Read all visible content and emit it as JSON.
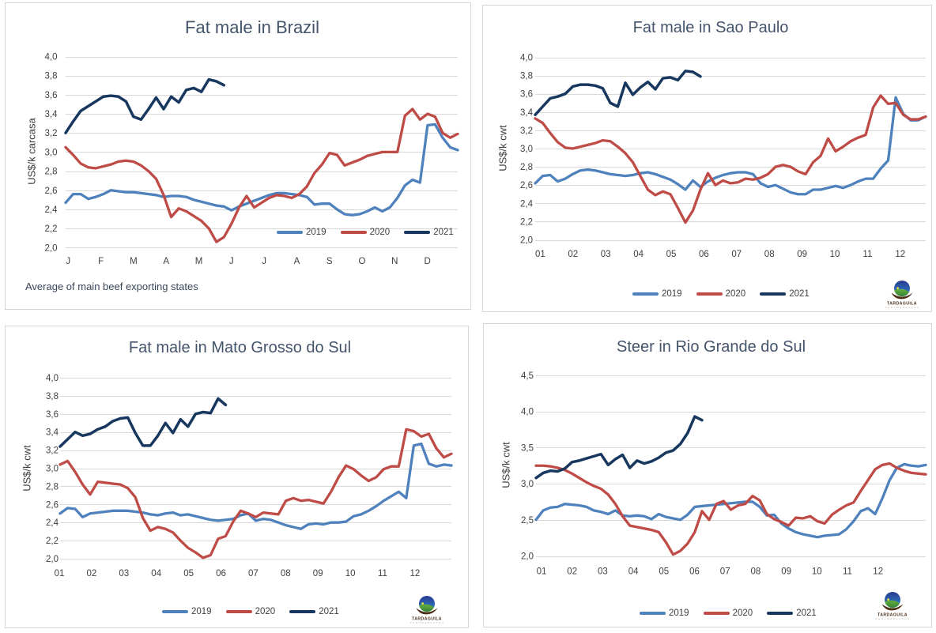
{
  "page": {
    "background": "#ffffff"
  },
  "colors": {
    "series_2019": "#4F81BD",
    "series_2020": "#BF4B47",
    "series_2021": "#17375E",
    "gridline": "#D9D9D9",
    "panel_border": "#D6D6D6",
    "chart_title_text": "#44546A",
    "tick_text": "#404040",
    "legend_text": "#404040",
    "footnote_text": "#39465A",
    "logo_name_text": "#4A2F1B",
    "logo_subtext": "#B3A89C"
  },
  "logo": {
    "name": "TARDAGUILA",
    "subtext": "A G R O M E R C A D O S"
  },
  "chart_data": [
    {
      "type": "line",
      "title": "Fat male in Brazil",
      "ylabel": "US$/k carcasa",
      "xlabel": "",
      "footnote": "Average of main beef exporting states",
      "ylim": [
        2.0,
        4.0
      ],
      "grid": true,
      "legend_position": "inside-bottom-right",
      "y_tick_labels": [
        "2,0",
        "2,2",
        "2,4",
        "2,6",
        "2,8",
        "3,0",
        "3,2",
        "3,4",
        "3,6",
        "3,8",
        "4,0"
      ],
      "y_tick_values": [
        2.0,
        2.2,
        2.4,
        2.6,
        2.8,
        3.0,
        3.2,
        3.4,
        3.6,
        3.8,
        4.0
      ],
      "x_tick_labels": [
        "J",
        "F",
        "M",
        "A",
        "M",
        "J",
        "J",
        "A",
        "S",
        "O",
        "N",
        "D"
      ],
      "series": [
        {
          "name": "2019",
          "color_key": "series_2019",
          "values": [
            2.47,
            2.56,
            2.56,
            2.51,
            2.53,
            2.56,
            2.6,
            2.59,
            2.58,
            2.58,
            2.57,
            2.56,
            2.55,
            2.53,
            2.54,
            2.54,
            2.53,
            2.5,
            2.48,
            2.46,
            2.44,
            2.43,
            2.39,
            2.43,
            2.46,
            2.49,
            2.52,
            2.55,
            2.57,
            2.57,
            2.56,
            2.55,
            2.53,
            2.45,
            2.46,
            2.46,
            2.4,
            2.35,
            2.34,
            2.35,
            2.38,
            2.42,
            2.38,
            2.42,
            2.52,
            2.65,
            2.71,
            2.68,
            3.28,
            3.29,
            3.15,
            3.05,
            3.02
          ]
        },
        {
          "name": "2020",
          "color_key": "series_2020",
          "values": [
            3.05,
            2.97,
            2.88,
            2.84,
            2.83,
            2.85,
            2.87,
            2.9,
            2.91,
            2.9,
            2.86,
            2.8,
            2.72,
            2.55,
            2.32,
            2.41,
            2.38,
            2.33,
            2.28,
            2.2,
            2.06,
            2.11,
            2.25,
            2.42,
            2.54,
            2.42,
            2.47,
            2.52,
            2.55,
            2.54,
            2.52,
            2.56,
            2.64,
            2.78,
            2.87,
            2.99,
            2.97,
            2.86,
            2.89,
            2.92,
            2.96,
            2.98,
            3.0,
            3.0,
            3.0,
            3.38,
            3.45,
            3.34,
            3.4,
            3.37,
            3.2,
            3.15,
            3.19
          ]
        },
        {
          "name": "2021",
          "color_key": "series_2021",
          "values": [
            3.2,
            3.32,
            3.43,
            3.48,
            3.53,
            3.58,
            3.59,
            3.58,
            3.53,
            3.37,
            3.34,
            3.45,
            3.57,
            3.45,
            3.58,
            3.52,
            3.65,
            3.67,
            3.63,
            3.76,
            3.74,
            3.7
          ]
        }
      ]
    },
    {
      "type": "line",
      "title": "Fat male in Sao Paulo",
      "ylabel": "US$/k cwt",
      "xlabel": "",
      "footnote": "",
      "ylim": [
        2.0,
        4.0
      ],
      "grid": true,
      "legend_position": "below-center",
      "y_tick_labels": [
        "2,0",
        "2,2",
        "2,4",
        "2,6",
        "2,8",
        "3,0",
        "3,2",
        "3,4",
        "3,6",
        "3,8",
        "4,0"
      ],
      "y_tick_values": [
        2.0,
        2.2,
        2.4,
        2.6,
        2.8,
        3.0,
        3.2,
        3.4,
        3.6,
        3.8,
        4.0
      ],
      "x_tick_labels": [
        "01",
        "02",
        "03",
        "04",
        "05",
        "06",
        "07",
        "08",
        "09",
        "10",
        "11",
        "12"
      ],
      "series": [
        {
          "name": "2019",
          "color_key": "series_2019",
          "values": [
            2.62,
            2.7,
            2.71,
            2.64,
            2.67,
            2.72,
            2.76,
            2.77,
            2.76,
            2.74,
            2.72,
            2.71,
            2.7,
            2.71,
            2.73,
            2.74,
            2.72,
            2.69,
            2.66,
            2.61,
            2.55,
            2.65,
            2.58,
            2.64,
            2.68,
            2.71,
            2.73,
            2.74,
            2.74,
            2.72,
            2.62,
            2.58,
            2.6,
            2.56,
            2.52,
            2.5,
            2.5,
            2.55,
            2.55,
            2.57,
            2.59,
            2.57,
            2.6,
            2.64,
            2.67,
            2.67,
            2.78,
            2.87,
            3.56,
            3.38,
            3.31,
            3.31,
            3.35
          ]
        },
        {
          "name": "2020",
          "color_key": "series_2020",
          "values": [
            3.33,
            3.28,
            3.17,
            3.07,
            3.01,
            3.0,
            3.02,
            3.04,
            3.06,
            3.09,
            3.08,
            3.02,
            2.95,
            2.85,
            2.7,
            2.55,
            2.49,
            2.53,
            2.5,
            2.35,
            2.19,
            2.32,
            2.55,
            2.73,
            2.6,
            2.65,
            2.62,
            2.63,
            2.67,
            2.66,
            2.68,
            2.72,
            2.8,
            2.82,
            2.8,
            2.75,
            2.72,
            2.85,
            2.92,
            3.11,
            2.97,
            3.02,
            3.08,
            3.12,
            3.15,
            3.45,
            3.58,
            3.49,
            3.5,
            3.37,
            3.32,
            3.32,
            3.35
          ]
        },
        {
          "name": "2021",
          "color_key": "series_2021",
          "values": [
            3.37,
            3.46,
            3.55,
            3.57,
            3.6,
            3.68,
            3.7,
            3.7,
            3.69,
            3.66,
            3.5,
            3.46,
            3.72,
            3.59,
            3.67,
            3.73,
            3.65,
            3.77,
            3.78,
            3.75,
            3.85,
            3.84,
            3.79
          ]
        }
      ]
    },
    {
      "type": "line",
      "title": "Fat male in Mato Grosso do Sul",
      "ylabel": "US$/k cwt",
      "xlabel": "",
      "footnote": "",
      "ylim": [
        2.0,
        4.0
      ],
      "grid": true,
      "legend_position": "below-center",
      "y_tick_labels": [
        "2,0",
        "2,2",
        "2,4",
        "2,6",
        "2,8",
        "3,0",
        "3,2",
        "3,4",
        "3,6",
        "3,8",
        "4,0"
      ],
      "y_tick_values": [
        2.0,
        2.2,
        2.4,
        2.6,
        2.8,
        3.0,
        3.2,
        3.4,
        3.6,
        3.8,
        4.0
      ],
      "x_tick_labels": [
        "01",
        "02",
        "03",
        "04",
        "05",
        "06",
        "07",
        "08",
        "09",
        "10",
        "11",
        "12"
      ],
      "series": [
        {
          "name": "2019",
          "color_key": "series_2019",
          "values": [
            2.5,
            2.56,
            2.55,
            2.46,
            2.5,
            2.51,
            2.52,
            2.53,
            2.53,
            2.53,
            2.52,
            2.51,
            2.49,
            2.48,
            2.5,
            2.51,
            2.48,
            2.49,
            2.47,
            2.45,
            2.43,
            2.42,
            2.43,
            2.44,
            2.48,
            2.5,
            2.42,
            2.44,
            2.43,
            2.4,
            2.37,
            2.35,
            2.33,
            2.38,
            2.39,
            2.38,
            2.4,
            2.4,
            2.41,
            2.47,
            2.49,
            2.53,
            2.58,
            2.64,
            2.69,
            2.74,
            2.67,
            3.25,
            3.27,
            3.05,
            3.02,
            3.04,
            3.03
          ]
        },
        {
          "name": "2020",
          "color_key": "series_2020",
          "values": [
            3.04,
            3.08,
            2.96,
            2.82,
            2.71,
            2.85,
            2.84,
            2.83,
            2.82,
            2.78,
            2.68,
            2.45,
            2.31,
            2.35,
            2.33,
            2.29,
            2.2,
            2.12,
            2.07,
            2.01,
            2.04,
            2.22,
            2.25,
            2.41,
            2.53,
            2.5,
            2.46,
            2.51,
            2.5,
            2.49,
            2.64,
            2.67,
            2.64,
            2.65,
            2.63,
            2.61,
            2.74,
            2.9,
            3.03,
            2.99,
            2.92,
            2.86,
            2.9,
            2.99,
            3.02,
            3.02,
            3.43,
            3.41,
            3.35,
            3.38,
            3.22,
            3.12,
            3.16
          ]
        },
        {
          "name": "2021",
          "color_key": "series_2021",
          "values": [
            3.24,
            3.32,
            3.4,
            3.36,
            3.38,
            3.43,
            3.46,
            3.52,
            3.55,
            3.56,
            3.39,
            3.25,
            3.25,
            3.36,
            3.5,
            3.39,
            3.54,
            3.46,
            3.6,
            3.62,
            3.61,
            3.77,
            3.7
          ]
        }
      ]
    },
    {
      "type": "line",
      "title": "Steer in Rio Grande do Sul",
      "ylabel": "US$/k cwt",
      "xlabel": "",
      "footnote": "",
      "ylim": [
        2.0,
        4.5
      ],
      "grid": true,
      "legend_position": "below-center",
      "y_tick_labels": [
        "2,0",
        "2,5",
        "3,0",
        "3,5",
        "4,0",
        "4,5"
      ],
      "y_tick_values": [
        2.0,
        2.5,
        3.0,
        3.5,
        4.0,
        4.5
      ],
      "x_tick_labels": [
        "01",
        "02",
        "03",
        "04",
        "05",
        "06",
        "07",
        "08",
        "09",
        "10",
        "11",
        "12"
      ],
      "series": [
        {
          "name": "2019",
          "color_key": "series_2019",
          "values": [
            2.5,
            2.63,
            2.67,
            2.68,
            2.72,
            2.71,
            2.7,
            2.68,
            2.63,
            2.61,
            2.58,
            2.63,
            2.56,
            2.55,
            2.56,
            2.55,
            2.51,
            2.58,
            2.54,
            2.52,
            2.5,
            2.57,
            2.68,
            2.69,
            2.7,
            2.71,
            2.72,
            2.73,
            2.74,
            2.75,
            2.75,
            2.68,
            2.56,
            2.57,
            2.45,
            2.38,
            2.33,
            2.3,
            2.28,
            2.26,
            2.28,
            2.29,
            2.3,
            2.37,
            2.48,
            2.62,
            2.66,
            2.58,
            2.8,
            3.05,
            3.22,
            3.27,
            3.25,
            3.24,
            3.26
          ]
        },
        {
          "name": "2020",
          "color_key": "series_2020",
          "values": [
            3.25,
            3.25,
            3.24,
            3.22,
            3.19,
            3.14,
            3.08,
            3.02,
            2.97,
            2.93,
            2.85,
            2.72,
            2.55,
            2.42,
            2.4,
            2.38,
            2.36,
            2.33,
            2.19,
            2.02,
            2.07,
            2.17,
            2.33,
            2.62,
            2.5,
            2.72,
            2.76,
            2.64,
            2.7,
            2.72,
            2.83,
            2.77,
            2.58,
            2.51,
            2.47,
            2.42,
            2.53,
            2.52,
            2.55,
            2.48,
            2.45,
            2.57,
            2.64,
            2.7,
            2.74,
            2.9,
            3.05,
            3.2,
            3.26,
            3.28,
            3.22,
            3.18,
            3.15,
            3.14,
            3.13
          ]
        },
        {
          "name": "2021",
          "color_key": "series_2021",
          "values": [
            3.08,
            3.15,
            3.18,
            3.17,
            3.21,
            3.3,
            3.32,
            3.35,
            3.38,
            3.41,
            3.26,
            3.34,
            3.4,
            3.22,
            3.32,
            3.28,
            3.31,
            3.36,
            3.43,
            3.46,
            3.55,
            3.7,
            3.93,
            3.88
          ]
        }
      ]
    }
  ]
}
